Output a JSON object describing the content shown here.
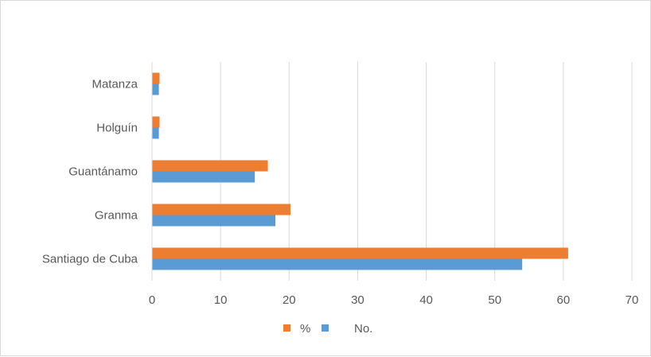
{
  "chart_data": {
    "type": "bar",
    "orientation": "horizontal",
    "categories": [
      "Matanza",
      "Holguín",
      "Guantánamo",
      "Granma",
      "Santiago de Cuba"
    ],
    "series": [
      {
        "name": "%",
        "color": "#ed7d31",
        "values": [
          1.1,
          1.1,
          16.9,
          20.2,
          60.7
        ]
      },
      {
        "name": "No.",
        "color": "#5b9bd5",
        "values": [
          1,
          1,
          15,
          18,
          54
        ]
      }
    ],
    "xlim": [
      0,
      70
    ],
    "xticks": [
      "0",
      "10",
      "20",
      "30",
      "40",
      "50",
      "60",
      "70"
    ],
    "grid": true,
    "legend_position": "bottom"
  }
}
